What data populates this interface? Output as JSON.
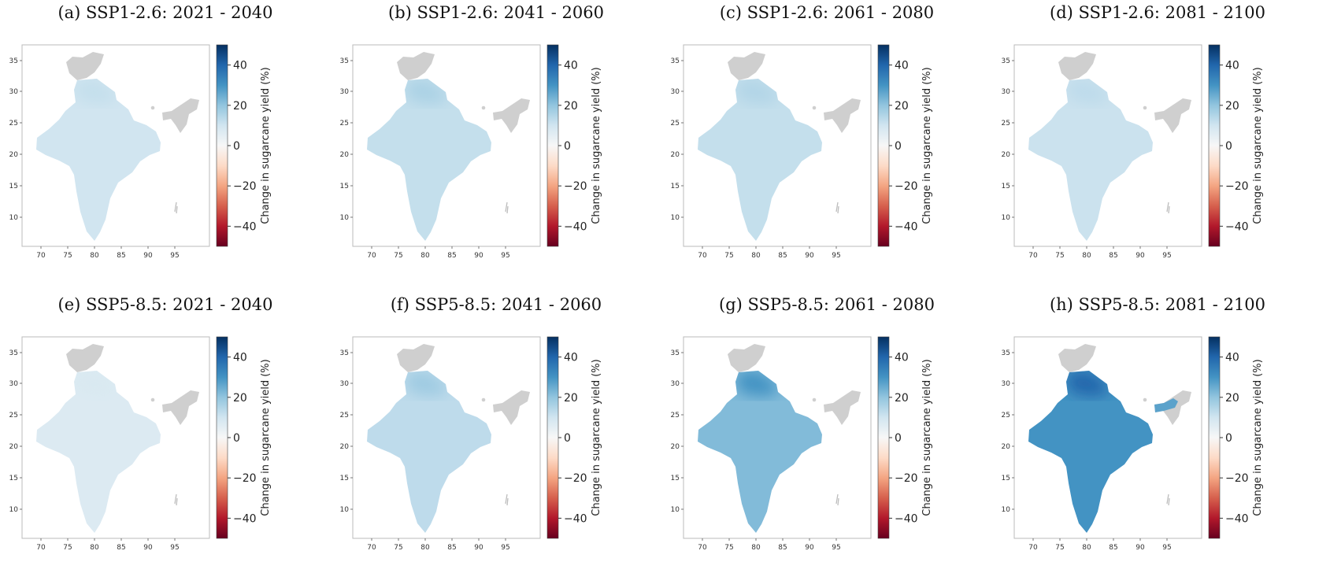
{
  "figure": {
    "colorbar": {
      "label": "Change in sugarcane yield (%)",
      "ticks": [
        "40",
        "20",
        "0",
        "−20",
        "−40"
      ],
      "colors": [
        "#67001f",
        "#b2182b",
        "#d6604d",
        "#f4a582",
        "#fddbc7",
        "#f7f7f7",
        "#d1e5f0",
        "#92c5de",
        "#4393c3",
        "#2166ac",
        "#053061"
      ]
    },
    "x_ticks": [
      "70",
      "75",
      "80",
      "85",
      "90",
      "95"
    ],
    "y_ticks": [
      "35",
      "30",
      "25",
      "20",
      "15",
      "10"
    ],
    "no_data_color": "#cfcfcf",
    "panels": [
      {
        "title": "(a) SSP1-2.6: 2021 - 2040",
        "mean_change": 10,
        "north_change": 12
      },
      {
        "title": "(b) SSP1-2.6: 2041 - 2060",
        "mean_change": 12,
        "north_change": 16
      },
      {
        "title": "(c) SSP1-2.6: 2061 - 2080",
        "mean_change": 12,
        "north_change": 15
      },
      {
        "title": "(d) SSP1-2.6: 2081 - 2100",
        "mean_change": 11,
        "north_change": 13
      },
      {
        "title": "(e) SSP5-8.5: 2021 - 2040",
        "mean_change": 7,
        "north_change": 8
      },
      {
        "title": "(f) SSP5-8.5: 2041 - 2060",
        "mean_change": 13,
        "north_change": 18
      },
      {
        "title": "(g) SSP5-8.5: 2061 - 2080",
        "mean_change": 22,
        "north_change": 30
      },
      {
        "title": "(h) SSP5-8.5: 2081 - 2100",
        "mean_change": 30,
        "north_change": 40
      }
    ]
  }
}
